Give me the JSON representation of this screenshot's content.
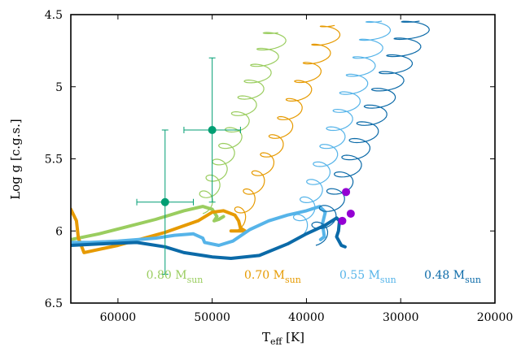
{
  "chart_data": {
    "type": "line",
    "xlabel": "T",
    "xlabel_sub": "eff",
    "xlabel_unit": " [K]",
    "ylabel": "Log g [c.g.s.]",
    "xlim": [
      65000,
      20000
    ],
    "ylim": [
      4.5,
      6.5
    ],
    "x_reversed": true,
    "y_reversed": true,
    "x_ticks": [
      60000,
      50000,
      40000,
      30000,
      20000
    ],
    "y_ticks": [
      4.5,
      5,
      5.5,
      6,
      6.5
    ],
    "x_tick_labels": [
      "60000",
      "50000",
      "40000",
      "30000",
      "20000"
    ],
    "y_tick_labels": [
      "4.5",
      "5",
      "5.5",
      "6",
      "6.5"
    ],
    "series": [
      {
        "label_main": "0.80 M",
        "label_sub": "sun",
        "color": "#9acd5f",
        "thick_path": [
          [
            65000,
            6.06
          ],
          [
            62000,
            6.02
          ],
          [
            59000,
            5.97
          ],
          [
            56000,
            5.92
          ],
          [
            53000,
            5.86
          ],
          [
            51000,
            5.83
          ],
          [
            50000,
            5.85
          ],
          [
            49500,
            5.9
          ],
          [
            49800,
            5.93
          ],
          [
            49300,
            5.92
          ],
          [
            48800,
            5.9
          ]
        ],
        "osc_start": [
          51000,
          5.83
        ],
        "osc_end": [
          43000,
          4.6
        ],
        "osc_cycles": 11,
        "osc_amp": 1400
      },
      {
        "label_main": "0.70 M",
        "label_sub": "sun",
        "color": "#e69a00",
        "thick_path": [
          [
            65000,
            5.85
          ],
          [
            64400,
            5.93
          ],
          [
            64200,
            6.05
          ],
          [
            63600,
            6.15
          ],
          [
            60000,
            6.1
          ],
          [
            55000,
            6.01
          ],
          [
            51500,
            5.93
          ],
          [
            50000,
            5.87
          ],
          [
            48800,
            5.86
          ],
          [
            47600,
            5.89
          ],
          [
            47200,
            5.93
          ],
          [
            47000,
            5.98
          ],
          [
            46500,
            6.0
          ],
          [
            48000,
            6.0
          ]
        ],
        "osc_start": [
          47500,
          5.95
        ],
        "osc_end": [
          37000,
          4.55
        ],
        "osc_cycles": 11,
        "osc_amp": 1300
      },
      {
        "label_main": "0.55 M",
        "label_sub": "sun",
        "color": "#56b4e9",
        "thick_path": [
          [
            65000,
            6.08
          ],
          [
            63000,
            6.08
          ],
          [
            60000,
            6.07
          ],
          [
            56000,
            6.05
          ],
          [
            54000,
            6.03
          ],
          [
            52000,
            6.02
          ],
          [
            51000,
            6.05
          ],
          [
            50800,
            6.08
          ],
          [
            49300,
            6.1
          ],
          [
            47800,
            6.07
          ],
          [
            46000,
            5.99
          ],
          [
            44000,
            5.93
          ],
          [
            42000,
            5.89
          ],
          [
            40000,
            5.86
          ],
          [
            38600,
            5.83
          ],
          [
            38000,
            5.87
          ],
          [
            38300,
            5.95
          ],
          [
            38100,
            6.04
          ],
          [
            38500,
            6.06
          ]
        ],
        "osc_start": [
          41000,
          6.0
        ],
        "osc_end": [
          32000,
          4.52
        ],
        "osc_cycles": 12,
        "osc_amp": 1500
      },
      {
        "label_main": "0.48 M",
        "label_sub": "sun",
        "color": "#0b6aa8",
        "thick_path": [
          [
            65000,
            6.1
          ],
          [
            62000,
            6.09
          ],
          [
            58000,
            6.08
          ],
          [
            55000,
            6.11
          ],
          [
            53000,
            6.15
          ],
          [
            50000,
            6.18
          ],
          [
            48000,
            6.19
          ],
          [
            45000,
            6.17
          ],
          [
            42000,
            6.09
          ],
          [
            40000,
            6.02
          ],
          [
            38000,
            5.96
          ],
          [
            36800,
            5.91
          ],
          [
            36500,
            5.93
          ],
          [
            36600,
            6.0
          ],
          [
            36800,
            6.04
          ],
          [
            36300,
            6.1
          ],
          [
            35900,
            6.11
          ]
        ],
        "osc_start": [
          39000,
          6.05
        ],
        "osc_end": [
          28000,
          4.52
        ],
        "osc_cycles": 13,
        "osc_amp": 1700
      }
    ],
    "observations": [
      {
        "teff": 55000,
        "logg": 5.8,
        "teff_err": 3000,
        "logg_err_low": 0.5,
        "logg_err_high": 0.5,
        "color": "#009e73"
      },
      {
        "teff": 50000,
        "logg": 5.3,
        "teff_err": 3000,
        "logg_err_low": 0.5,
        "logg_err_high": 0.5,
        "color": "#009e73"
      },
      {
        "teff": 35800,
        "logg": 5.73,
        "color": "#9400d3"
      },
      {
        "teff": 35300,
        "logg": 5.88,
        "color": "#9400d3"
      },
      {
        "teff": 36200,
        "logg": 5.93,
        "color": "#9400d3"
      }
    ]
  }
}
